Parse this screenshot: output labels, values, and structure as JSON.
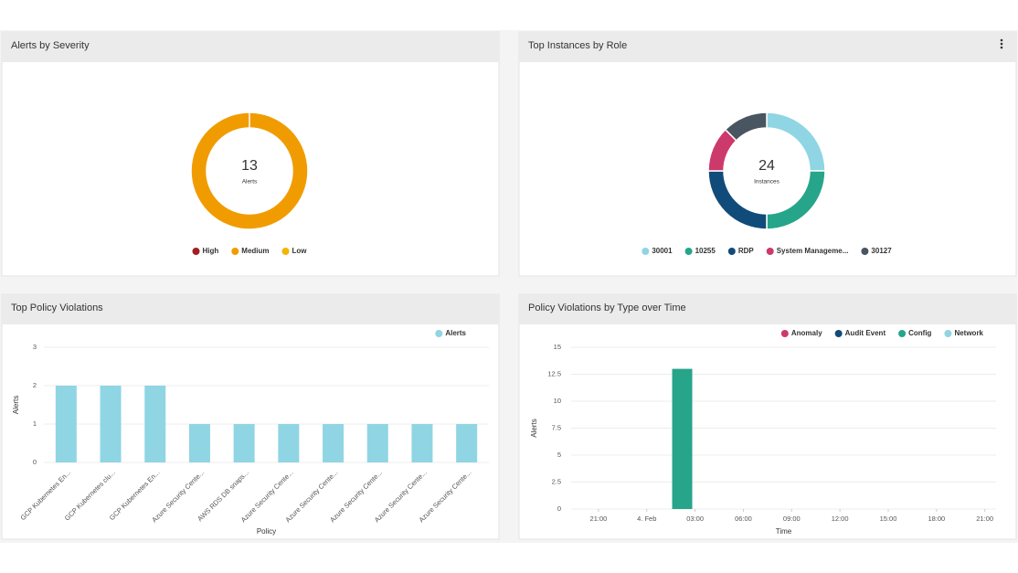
{
  "chart_data": [
    {
      "type": "donut",
      "title": "Alerts by Severity",
      "center_value": 13,
      "center_label": "Alerts",
      "categories": [
        "High",
        "Medium",
        "Low"
      ],
      "values": [
        0,
        13,
        0
      ],
      "colors": [
        "#a31e22",
        "#f09c00",
        "#f4b400"
      ]
    },
    {
      "type": "donut",
      "title": "Top Instances by Role",
      "center_value": 24,
      "center_label": "Instances",
      "categories": [
        "30001",
        "10255",
        "RDP",
        "System Manageme...",
        "30127"
      ],
      "values": [
        6,
        6,
        6,
        3,
        3
      ],
      "colors": [
        "#8fd5e3",
        "#26a58a",
        "#114b7a",
        "#cc3a6b",
        "#495560"
      ]
    },
    {
      "type": "bar",
      "title": "Top Policy Violations",
      "categories": [
        "GCP Kubernetes En...",
        "GCP Kubernetes clu...",
        "GCP Kubernetes En...",
        "Azure Security Cente...",
        "AWS RDS DB snaps...",
        "Azure Security Cente...",
        "Azure Security Cente...",
        "Azure Security Cente...",
        "Azure Security Cente...",
        "Azure Security Cente..."
      ],
      "series": [
        {
          "name": "Alerts",
          "color": "#8fd5e3",
          "values": [
            2,
            2,
            2,
            1,
            1,
            1,
            1,
            1,
            1,
            1
          ]
        }
      ],
      "ylim": [
        0,
        3
      ],
      "yticks": [
        0,
        1,
        2,
        3
      ],
      "ylabel": "Alerts",
      "xlabel": "Policy",
      "grid": true
    },
    {
      "type": "stacked_time_bar",
      "title": "Policy Violations by Type over Time",
      "x": [
        2.2
      ],
      "xlim": [
        -4.7,
        21.7
      ],
      "xticks": [
        {
          "value": -3,
          "label": "21:00"
        },
        {
          "value": 0,
          "label": "4. Feb"
        },
        {
          "value": 3,
          "label": "03:00"
        },
        {
          "value": 6,
          "label": "06:00"
        },
        {
          "value": 9,
          "label": "09:00"
        },
        {
          "value": 12,
          "label": "12:00"
        },
        {
          "value": 15,
          "label": "15:00"
        },
        {
          "value": 18,
          "label": "18:00"
        },
        {
          "value": 21,
          "label": "21:00"
        }
      ],
      "series": [
        {
          "name": "Anomaly",
          "color": "#cc3a6b",
          "values": [
            0
          ]
        },
        {
          "name": "Audit Event",
          "color": "#114b7a",
          "values": [
            0
          ]
        },
        {
          "name": "Config",
          "color": "#26a58a",
          "values": [
            13
          ]
        },
        {
          "name": "Network",
          "color": "#8fd5e3",
          "values": [
            0
          ]
        }
      ],
      "ylim": [
        0,
        15
      ],
      "yticks": [
        0,
        2.5,
        5,
        7.5,
        10,
        12.5,
        15
      ],
      "ylabel": "Alerts",
      "xlabel": "Time",
      "grid": true
    }
  ]
}
